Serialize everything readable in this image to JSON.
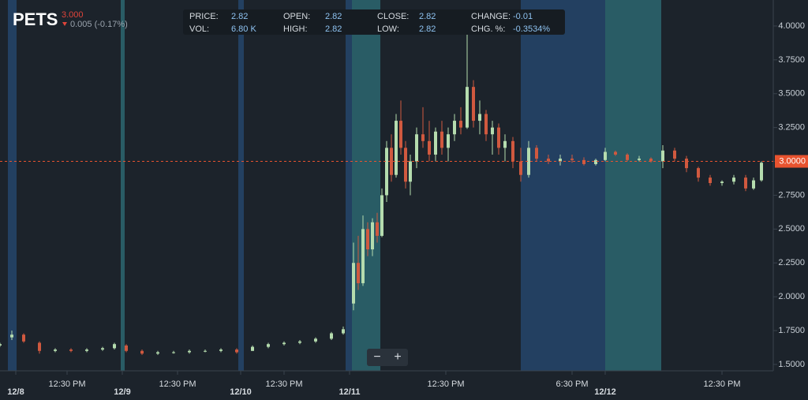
{
  "header": {
    "ticker": "PETS",
    "last": "3.000",
    "change": "0.005 (-0.17%)"
  },
  "info": [
    {
      "label": "PRICE:",
      "value": "2.82"
    },
    {
      "label": "VOL:",
      "value": "6.80 K"
    },
    {
      "label": "OPEN:",
      "value": "2.82"
    },
    {
      "label": "HIGH:",
      "value": "2.82"
    },
    {
      "label": "CLOSE:",
      "value": "2.82"
    },
    {
      "label": "LOW:",
      "value": "2.82"
    },
    {
      "label": "CHANGE:",
      "value": "-0.01"
    },
    {
      "label": "CHG. %:",
      "value": "-0.3534%"
    }
  ],
  "zoom_controls": [
    "−",
    "+"
  ],
  "chart_data": {
    "type": "candlestick",
    "up_color": "#b5dcae",
    "down_color": "#d0593f",
    "xlim": [
      0,
      98
    ],
    "ylim": [
      1.453,
      4.192
    ],
    "xticks": [
      {
        "value": 2,
        "label": "12/8"
      },
      {
        "value": 8.5,
        "label": "12:30 PM"
      },
      {
        "value": 15.5,
        "label": "12/9"
      },
      {
        "value": 22.5,
        "label": "12:30 PM"
      },
      {
        "value": 30.5,
        "label": "12/10"
      },
      {
        "value": 36,
        "label": "12:30 PM"
      },
      {
        "value": 44.3,
        "label": "12/11"
      },
      {
        "value": 56.5,
        "label": "12:30 PM"
      },
      {
        "value": 72.5,
        "label": "6:30 PM"
      },
      {
        "value": 76.7,
        "label": "12/12"
      },
      {
        "value": 91.5,
        "label": "12:30 PM"
      }
    ],
    "yticks": [
      {
        "value": 1.5,
        "label": "1.5000"
      },
      {
        "value": 1.75,
        "label": "1.7500"
      },
      {
        "value": 2,
        "label": "2.0000"
      },
      {
        "value": 2.25,
        "label": "2.2500"
      },
      {
        "value": 2.5,
        "label": "2.5000"
      },
      {
        "value": 2.75,
        "label": "2.7500"
      },
      {
        "value": 3,
        "label": "3.0000"
      },
      {
        "value": 3.25,
        "label": "3.2500"
      },
      {
        "value": 3.5,
        "label": "3.5000"
      },
      {
        "value": 3.75,
        "label": "3.7500"
      },
      {
        "value": 4,
        "label": "4.0000"
      }
    ],
    "price_line": {
      "value": 3,
      "label": "3.0000",
      "color": "#e8532f"
    },
    "sessions": [
      {
        "start": 1.0,
        "end": 2.1,
        "color": "#24456b"
      },
      {
        "start": 15.3,
        "end": 15.8,
        "color": "#2b6670"
      },
      {
        "start": 30.2,
        "end": 30.9,
        "color": "#24456b"
      },
      {
        "start": 43.8,
        "end": 44.6,
        "color": "#24456b"
      },
      {
        "start": 44.6,
        "end": 48.2,
        "color": "#2b6670"
      },
      {
        "start": 66,
        "end": 76.7,
        "color": "#24456b"
      },
      {
        "start": 76.7,
        "end": 83.8,
        "color": "#2b6670"
      }
    ],
    "x": [
      0,
      1.5,
      3,
      5,
      7,
      9,
      11,
      13,
      14.5,
      16,
      18,
      20,
      22,
      24,
      26,
      28,
      30,
      32,
      34,
      36,
      38,
      40,
      42,
      43.5,
      44.8,
      45.4,
      46,
      46.6,
      47.2,
      47.8,
      48.4,
      49,
      49.6,
      50.2,
      50.8,
      51.4,
      52,
      52.8,
      53.6,
      54.4,
      55.2,
      56,
      56.8,
      57.6,
      58.4,
      59.2,
      60,
      60.8,
      61.6,
      62.4,
      63.2,
      64,
      65,
      66,
      67,
      68,
      69.5,
      71,
      72.5,
      74,
      75.5,
      76.7,
      78,
      79.5,
      81,
      82.5,
      84,
      85.5,
      87,
      88.5,
      90,
      91.5,
      93,
      94.5,
      95.5,
      96.5
    ],
    "open": [
      1.64,
      1.7,
      1.72,
      1.66,
      1.6,
      1.61,
      1.6,
      1.61,
      1.62,
      1.64,
      1.6,
      1.58,
      1.59,
      1.59,
      1.6,
      1.6,
      1.61,
      1.6,
      1.63,
      1.65,
      1.66,
      1.67,
      1.69,
      1.73,
      1.95,
      2.25,
      2.1,
      2.5,
      2.35,
      2.55,
      2.45,
      2.75,
      3.1,
      2.9,
      3.3,
      3.1,
      2.85,
      3.0,
      3.2,
      3.15,
      3.05,
      3.22,
      3.1,
      3.2,
      3.3,
      3.25,
      3.55,
      3.3,
      3.35,
      3.2,
      3.25,
      3.1,
      3.15,
      3.0,
      2.9,
      3.1,
      3.02,
      3.0,
      3.02,
      3.01,
      2.98,
      3.01,
      3.07,
      3.05,
      3.01,
      3.02,
      3.0,
      3.08,
      3.02,
      2.95,
      2.88,
      2.84,
      2.85,
      2.88,
      2.8,
      2.86
    ],
    "high": [
      1.66,
      1.75,
      1.73,
      1.67,
      1.62,
      1.62,
      1.62,
      1.63,
      1.66,
      1.65,
      1.61,
      1.6,
      1.6,
      1.61,
      1.61,
      1.62,
      1.62,
      1.64,
      1.66,
      1.67,
      1.68,
      1.7,
      1.74,
      1.78,
      2.4,
      2.45,
      2.6,
      2.55,
      2.58,
      2.62,
      2.8,
      3.15,
      3.2,
      3.35,
      3.45,
      3.15,
      3.05,
      3.25,
      3.4,
      3.3,
      3.25,
      3.3,
      3.25,
      3.35,
      3.4,
      3.95,
      3.6,
      3.45,
      3.38,
      3.3,
      3.28,
      3.2,
      3.18,
      3.1,
      3.15,
      3.12,
      3.05,
      3.05,
      3.05,
      3.03,
      3.02,
      3.1,
      3.08,
      3.06,
      3.04,
      3.03,
      3.12,
      3.1,
      3.04,
      2.96,
      2.9,
      2.86,
      2.9,
      2.9,
      2.88,
      3.0
    ],
    "low": [
      1.63,
      1.68,
      1.66,
      1.58,
      1.59,
      1.59,
      1.59,
      1.6,
      1.61,
      1.59,
      1.57,
      1.57,
      1.58,
      1.58,
      1.59,
      1.59,
      1.58,
      1.6,
      1.62,
      1.64,
      1.65,
      1.66,
      1.68,
      1.72,
      1.9,
      2.05,
      2.08,
      2.3,
      2.3,
      2.4,
      2.44,
      2.7,
      2.85,
      2.88,
      3.05,
      2.8,
      2.75,
      2.95,
      3.1,
      3.0,
      3.0,
      3.05,
      3.0,
      3.15,
      3.2,
      3.24,
      3.25,
      3.2,
      3.15,
      3.05,
      3.05,
      3.0,
      2.95,
      2.85,
      2.88,
      3.0,
      2.98,
      2.97,
      2.99,
      2.97,
      2.97,
      3.0,
      3.04,
      3.0,
      3.0,
      2.99,
      2.95,
      3.0,
      2.92,
      2.85,
      2.82,
      2.82,
      2.83,
      2.78,
      2.79,
      2.85
    ],
    "close": [
      1.65,
      1.72,
      1.67,
      1.6,
      1.61,
      1.6,
      1.61,
      1.62,
      1.65,
      1.6,
      1.58,
      1.59,
      1.59,
      1.6,
      1.6,
      1.61,
      1.59,
      1.63,
      1.65,
      1.66,
      1.67,
      1.69,
      1.73,
      1.76,
      2.25,
      2.1,
      2.5,
      2.35,
      2.55,
      2.45,
      2.75,
      3.1,
      2.9,
      3.3,
      3.1,
      2.85,
      3.0,
      3.2,
      3.15,
      3.05,
      3.22,
      3.1,
      3.2,
      3.3,
      3.25,
      3.55,
      3.3,
      3.35,
      3.2,
      3.25,
      3.1,
      3.15,
      3.0,
      2.9,
      3.1,
      3.02,
      3.0,
      3.02,
      3.01,
      2.98,
      3.01,
      3.07,
      3.05,
      3.01,
      3.02,
      3.0,
      3.08,
      3.02,
      2.95,
      2.88,
      2.84,
      2.85,
      2.88,
      2.8,
      2.86,
      2.99
    ]
  }
}
